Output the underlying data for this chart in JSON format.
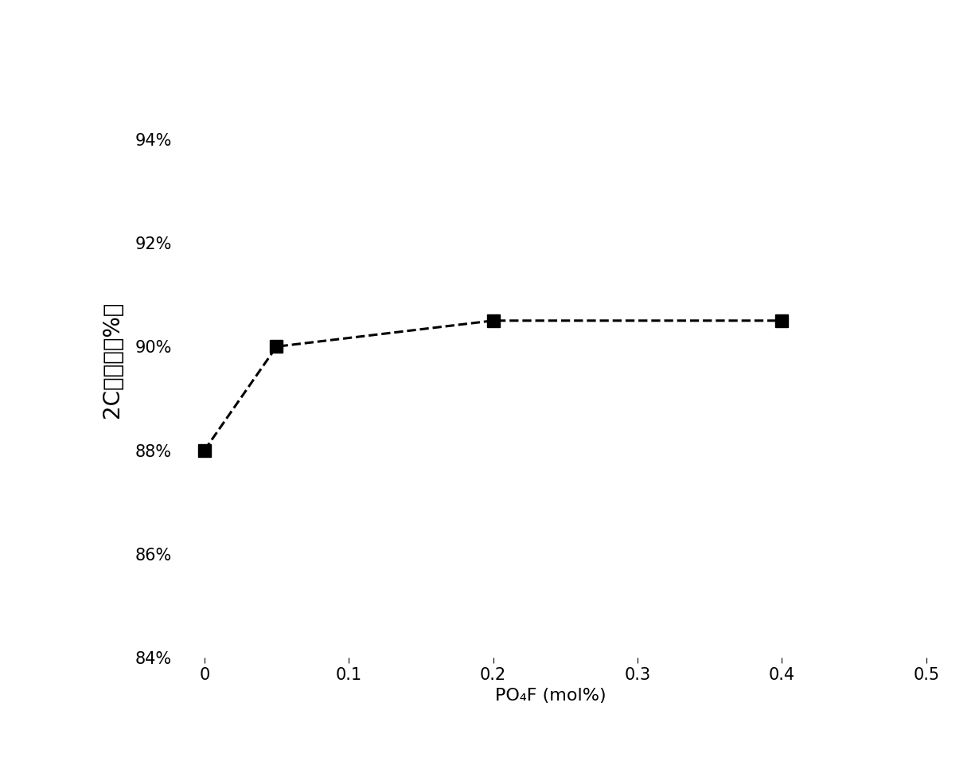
{
  "x": [
    0,
    0.05,
    0.2,
    0.4
  ],
  "y": [
    88.0,
    90.0,
    90.5,
    90.5
  ],
  "xlim": [
    -0.02,
    0.5
  ],
  "ylim": [
    84,
    95.5
  ],
  "xticks": [
    0,
    0.1,
    0.2,
    0.3,
    0.4,
    0.5
  ],
  "xtick_labels": [
    "0",
    "0.1",
    "0.2",
    "0.3",
    "0.4",
    "0.5"
  ],
  "yticks": [
    84,
    86,
    88,
    90,
    92,
    94
  ],
  "ytick_labels": [
    "84%",
    "86%",
    "88%",
    "90%",
    "92%",
    "94%"
  ],
  "xlabel": "PO₄F (mol%)",
  "ylabel": "2C输出率（%）",
  "line_color": "#000000",
  "marker": "s",
  "marker_size": 11,
  "marker_color": "#000000",
  "line_style": "--",
  "line_width": 2.2,
  "background_color": "#ffffff",
  "tick_fontsize": 15,
  "ylabel_fontsize": 20,
  "xlabel_fontsize": 16,
  "fig_width": 12.25,
  "fig_height": 9.61
}
